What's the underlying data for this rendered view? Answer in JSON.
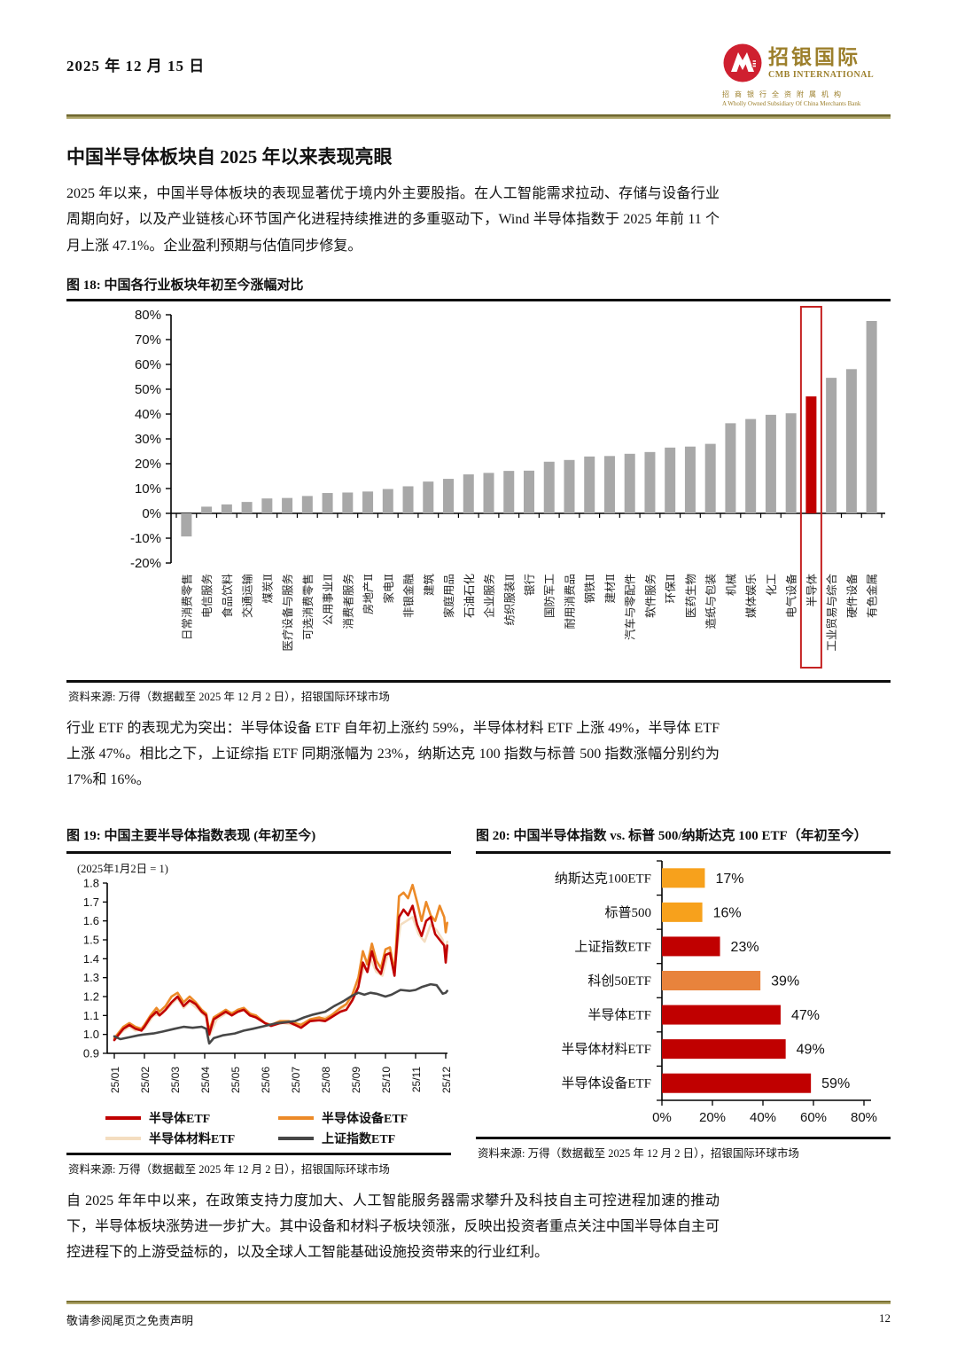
{
  "page": {
    "date": "2025 年 12 月 15 日",
    "footer_note": "敬请参阅尾页之免责声明",
    "page_number": "12"
  },
  "logo": {
    "name_cn": "招银国际",
    "name_en": "CMB INTERNATIONAL",
    "subsidiary_cn": "招商银行全资附属机构",
    "subsidiary_en": "A Wholly Owned Subsidiary Of China Merchants Bank",
    "mark_color": "#cf2030",
    "gold": "#9c7f2b"
  },
  "article": {
    "title": "中国半导体板块自 2025 年以来表现亮眼",
    "para1": "2025 年以来，中国半导体板块的表现显著优于境内外主要股指。在人工智能需求拉动、存储与设备行业周期向好，以及产业链核心环节国产化进程持续推进的多重驱动下，Wind 半导体指数于 2025 年前 11 个月上涨 47.1%。企业盈利预期与估值同步修复。",
    "para2": "行业 ETF 的表现尤为突出：半导体设备 ETF 自年初上涨约 59%，半导体材料 ETF 上涨 49%，半导体 ETF 上涨 47%。相比之下，上证综指 ETF 同期涨幅为 23%，纳斯达克 100 指数与标普 500 指数涨幅分别约为 17%和 16%。",
    "para3": "自 2025 年年中以来，在政策支持力度加大、人工智能服务器需求攀升及科技自主可控进程加速的推动下，半导体板块涨势进一步扩大。其中设备和材料子板块领涨，反映出投资者重点关注中国半导体自主可控进程下的上游受益标的，以及全球人工智能基础设施投资带来的行业红利。"
  },
  "chart_data": [
    {
      "id": "fig18",
      "type": "bar",
      "title": "图 18: 中国各行业板块年初至今涨幅对比",
      "source": "资料来源: 万得（数据截至 2025 年 12 月 2 日），招银国际环球市场",
      "categories": [
        "日常消费零售",
        "电信服务",
        "食品饮料",
        "交通运输",
        "煤炭Ⅱ",
        "医疗设备与服务",
        "可选消费零售",
        "公用事业Ⅱ",
        "消费者服务",
        "房地产Ⅱ",
        "家电Ⅱ",
        "非银金融",
        "建筑",
        "家庭用品",
        "石油石化",
        "企业服务",
        "纺织服装Ⅱ",
        "银行",
        "国防军工",
        "耐用消费品",
        "钢铁Ⅱ",
        "建材Ⅱ",
        "汽车与零配件",
        "软件服务",
        "环保Ⅱ",
        "医药生物",
        "造纸与包装",
        "机械",
        "媒体娱乐",
        "化工",
        "电气设备",
        "半导体",
        "工业贸易与综合",
        "硬件设备",
        "有色金属"
      ],
      "values": [
        -9.3,
        2.7,
        3.6,
        4.6,
        6.0,
        6.2,
        7.0,
        8.2,
        8.4,
        8.8,
        9.8,
        10.9,
        12.8,
        13.9,
        15.7,
        16.3,
        17.1,
        17.2,
        20.8,
        21.5,
        22.9,
        23.1,
        24.0,
        24.7,
        26.5,
        26.9,
        28.0,
        36.3,
        38.0,
        39.7,
        40.3,
        47.1,
        54.6,
        58.1,
        77.5
      ],
      "highlight_index": 31,
      "highlight_label": "半导体",
      "bar_color": "#a8a8a8",
      "highlight_color": "#c00000",
      "box_color": "#c52222",
      "ylim": [
        -20,
        80
      ],
      "yticks": [
        "80%",
        "70%",
        "60%",
        "50%",
        "40%",
        "30%",
        "20%",
        "10%",
        "0%",
        "-10%",
        "-20%"
      ],
      "grid": false,
      "legend": "none"
    },
    {
      "id": "fig19",
      "type": "line",
      "title": "图 19: 中国主要半导体指数表现 (年初至今)",
      "subtitle": "(2025年1月2日 = 1)",
      "source": "资料来源: 万得（数据截至 2025 年 12 月 2 日），招银国际环球市场",
      "x_labels": [
        "25/01",
        "25/02",
        "25/03",
        "25/04",
        "25/05",
        "25/06",
        "25/07",
        "25/08",
        "25/09",
        "25/10",
        "25/11",
        "25/12"
      ],
      "ylim": [
        0.9,
        1.8
      ],
      "yticks": [
        "1.8",
        "1.7",
        "1.6",
        "1.5",
        "1.4",
        "1.3",
        "1.2",
        "1.1",
        "1.0",
        "0.9"
      ],
      "grid": false,
      "legend_position": "bottom",
      "series": [
        {
          "name": "半导体材料ETF",
          "color": "#f4ddc0",
          "points": [
            [
              0,
              0.975
            ],
            [
              0.3,
              1.02
            ],
            [
              0.5,
              1.04
            ],
            [
              0.7,
              1.02
            ],
            [
              1,
              1.03
            ],
            [
              1.3,
              1.1
            ],
            [
              1.6,
              1.11
            ],
            [
              1.9,
              1.16
            ],
            [
              2.1,
              1.19
            ],
            [
              2.3,
              1.14
            ],
            [
              2.5,
              1.17
            ],
            [
              2.8,
              1.13
            ],
            [
              3.05,
              1.09
            ],
            [
              3.15,
              0.99
            ],
            [
              3.4,
              1.08
            ],
            [
              3.7,
              1.11
            ],
            [
              4,
              1.12
            ],
            [
              4.3,
              1.14
            ],
            [
              4.6,
              1.1
            ],
            [
              5,
              1.06
            ],
            [
              5.3,
              1.05
            ],
            [
              5.6,
              1.06
            ],
            [
              6,
              1.05
            ],
            [
              6.3,
              1.06
            ],
            [
              6.6,
              1.08
            ],
            [
              7,
              1.09
            ],
            [
              7.3,
              1.11
            ],
            [
              7.6,
              1.14
            ],
            [
              7.9,
              1.19
            ],
            [
              8.1,
              1.26
            ],
            [
              8.3,
              1.36
            ],
            [
              8.5,
              1.4
            ],
            [
              8.7,
              1.33
            ],
            [
              8.9,
              1.31
            ],
            [
              9.1,
              1.44
            ],
            [
              9.3,
              1.35
            ],
            [
              9.5,
              1.58
            ],
            [
              9.7,
              1.6
            ],
            [
              9.9,
              1.62
            ],
            [
              10.1,
              1.53
            ],
            [
              10.3,
              1.49
            ],
            [
              10.5,
              1.58
            ],
            [
              10.7,
              1.55
            ],
            [
              10.9,
              1.5
            ],
            [
              11.0,
              1.43
            ],
            [
              11.05,
              1.49
            ]
          ]
        },
        {
          "name": "半导体设备ETF",
          "color": "#ec8a28",
          "points": [
            [
              0,
              0.98
            ],
            [
              0.15,
              1.01
            ],
            [
              0.3,
              1.04
            ],
            [
              0.5,
              1.06
            ],
            [
              0.7,
              1.04
            ],
            [
              0.9,
              1.03
            ],
            [
              1,
              1.05
            ],
            [
              1.2,
              1.1
            ],
            [
              1.4,
              1.14
            ],
            [
              1.5,
              1.12
            ],
            [
              1.7,
              1.15
            ],
            [
              1.9,
              1.2
            ],
            [
              2.1,
              1.22
            ],
            [
              2.3,
              1.17
            ],
            [
              2.5,
              1.2
            ],
            [
              2.7,
              1.17
            ],
            [
              2.9,
              1.13
            ],
            [
              3.05,
              1.11
            ],
            [
              3.15,
              1.02
            ],
            [
              3.3,
              1.09
            ],
            [
              3.5,
              1.11
            ],
            [
              3.7,
              1.13
            ],
            [
              3.9,
              1.11
            ],
            [
              4.1,
              1.13
            ],
            [
              4.3,
              1.14
            ],
            [
              4.5,
              1.11
            ],
            [
              4.7,
              1.1
            ],
            [
              5,
              1.06
            ],
            [
              5.2,
              1.05
            ],
            [
              5.5,
              1.07
            ],
            [
              5.8,
              1.07
            ],
            [
              6,
              1.06
            ],
            [
              6.2,
              1.05
            ],
            [
              6.5,
              1.08
            ],
            [
              6.8,
              1.09
            ],
            [
              7,
              1.08
            ],
            [
              7.2,
              1.1
            ],
            [
              7.5,
              1.14
            ],
            [
              7.7,
              1.16
            ],
            [
              7.9,
              1.21
            ],
            [
              8.1,
              1.3
            ],
            [
              8.25,
              1.44
            ],
            [
              8.4,
              1.37
            ],
            [
              8.55,
              1.48
            ],
            [
              8.7,
              1.39
            ],
            [
              8.85,
              1.35
            ],
            [
              9,
              1.45
            ],
            [
              9.15,
              1.46
            ],
            [
              9.3,
              1.33
            ],
            [
              9.45,
              1.73
            ],
            [
              9.6,
              1.75
            ],
            [
              9.75,
              1.72
            ],
            [
              9.9,
              1.79
            ],
            [
              10.05,
              1.7
            ],
            [
              10.2,
              1.6
            ],
            [
              10.35,
              1.7
            ],
            [
              10.5,
              1.63
            ],
            [
              10.65,
              1.6
            ],
            [
              10.8,
              1.68
            ],
            [
              10.95,
              1.62
            ],
            [
              11.0,
              1.54
            ],
            [
              11.05,
              1.59
            ]
          ]
        },
        {
          "name": "半导体ETF",
          "color": "#c00000",
          "points": [
            [
              0,
              0.97
            ],
            [
              0.15,
              1.0
            ],
            [
              0.3,
              1.03
            ],
            [
              0.5,
              1.05
            ],
            [
              0.7,
              1.03
            ],
            [
              0.9,
              1.02
            ],
            [
              1,
              1.04
            ],
            [
              1.2,
              1.09
            ],
            [
              1.4,
              1.12
            ],
            [
              1.5,
              1.1
            ],
            [
              1.7,
              1.13
            ],
            [
              1.9,
              1.17
            ],
            [
              2.1,
              1.2
            ],
            [
              2.3,
              1.15
            ],
            [
              2.5,
              1.18
            ],
            [
              2.7,
              1.16
            ],
            [
              2.9,
              1.12
            ],
            [
              3.05,
              1.1
            ],
            [
              3.15,
              1.0
            ],
            [
              3.3,
              1.08
            ],
            [
              3.5,
              1.1
            ],
            [
              3.7,
              1.12
            ],
            [
              3.9,
              1.1
            ],
            [
              4.1,
              1.12
            ],
            [
              4.3,
              1.13
            ],
            [
              4.5,
              1.1
            ],
            [
              4.7,
              1.09
            ],
            [
              5,
              1.06
            ],
            [
              5.2,
              1.045
            ],
            [
              5.5,
              1.06
            ],
            [
              5.8,
              1.065
            ],
            [
              6,
              1.05
            ],
            [
              6.2,
              1.035
            ],
            [
              6.5,
              1.07
            ],
            [
              6.8,
              1.075
            ],
            [
              7,
              1.07
            ],
            [
              7.2,
              1.09
            ],
            [
              7.5,
              1.12
            ],
            [
              7.7,
              1.13
            ],
            [
              7.9,
              1.18
            ],
            [
              8.1,
              1.25
            ],
            [
              8.25,
              1.38
            ],
            [
              8.4,
              1.33
            ],
            [
              8.55,
              1.44
            ],
            [
              8.7,
              1.35
            ],
            [
              8.85,
              1.32
            ],
            [
              9,
              1.42
            ],
            [
              9.15,
              1.43
            ],
            [
              9.3,
              1.31
            ],
            [
              9.45,
              1.62
            ],
            [
              9.6,
              1.66
            ],
            [
              9.75,
              1.63
            ],
            [
              9.9,
              1.68
            ],
            [
              10.05,
              1.58
            ],
            [
              10.2,
              1.52
            ],
            [
              10.35,
              1.6
            ],
            [
              10.5,
              1.62
            ],
            [
              10.65,
              1.53
            ],
            [
              10.8,
              1.5
            ],
            [
              10.95,
              1.47
            ],
            [
              11.0,
              1.38
            ],
            [
              11.05,
              1.47
            ]
          ]
        },
        {
          "name": "上证指数ETF",
          "color": "#474747",
          "points": [
            [
              0,
              0.99
            ],
            [
              0.2,
              0.975
            ],
            [
              0.5,
              0.985
            ],
            [
              0.8,
              0.995
            ],
            [
              1,
              1.0
            ],
            [
              1.3,
              1.005
            ],
            [
              1.6,
              1.015
            ],
            [
              2,
              1.03
            ],
            [
              2.3,
              1.04
            ],
            [
              2.6,
              1.035
            ],
            [
              2.9,
              1.04
            ],
            [
              3.05,
              1.03
            ],
            [
              3.15,
              0.952
            ],
            [
              3.3,
              0.98
            ],
            [
              3.6,
              0.995
            ],
            [
              4,
              1.005
            ],
            [
              4.3,
              1.02
            ],
            [
              4.6,
              1.03
            ],
            [
              5,
              1.045
            ],
            [
              5.4,
              1.06
            ],
            [
              5.7,
              1.065
            ],
            [
              6,
              1.07
            ],
            [
              6.3,
              1.09
            ],
            [
              6.6,
              1.105
            ],
            [
              7,
              1.12
            ],
            [
              7.3,
              1.15
            ],
            [
              7.6,
              1.175
            ],
            [
              7.9,
              1.205
            ],
            [
              8.1,
              1.22
            ],
            [
              8.3,
              1.21
            ],
            [
              8.5,
              1.22
            ],
            [
              8.7,
              1.215
            ],
            [
              9,
              1.2
            ],
            [
              9.2,
              1.21
            ],
            [
              9.5,
              1.235
            ],
            [
              9.8,
              1.23
            ],
            [
              10,
              1.235
            ],
            [
              10.2,
              1.25
            ],
            [
              10.5,
              1.265
            ],
            [
              10.7,
              1.26
            ],
            [
              10.9,
              1.215
            ],
            [
              11.0,
              1.22
            ],
            [
              11.05,
              1.23
            ]
          ]
        }
      ],
      "legend": [
        {
          "label": "半导体ETF",
          "color": "#c00000"
        },
        {
          "label": "半导体设备ETF",
          "color": "#ec8a28"
        },
        {
          "label": "半导体材料ETF",
          "color": "#f4ddc0"
        },
        {
          "label": "上证指数ETF",
          "color": "#474747"
        }
      ]
    },
    {
      "id": "fig20",
      "type": "hbar",
      "title": "图 20: 中国半导体指数 vs. 标普 500/纳斯达克 100 ETF（年初至今）",
      "source": "资料来源: 万得（数据截至 2025 年 12 月 2 日），招银国际环球市场",
      "categories": [
        "纳斯达克100ETF",
        "标普500",
        "上证指数ETF",
        "科创50ETF",
        "半导体ETF",
        "半导体材料ETF",
        "半导体设备ETF"
      ],
      "values": [
        17,
        16,
        23,
        39,
        47,
        49,
        59
      ],
      "value_labels": [
        "17%",
        "16%",
        "23%",
        "39%",
        "47%",
        "49%",
        "59%"
      ],
      "colors": [
        "#f7a11c",
        "#f7a11c",
        "#c00000",
        "#e8833c",
        "#c00000",
        "#c00000",
        "#c00000"
      ],
      "xlim": [
        0,
        80
      ],
      "xticks": [
        0,
        20,
        40,
        60,
        80
      ],
      "xtick_labels": [
        "0%",
        "20%",
        "40%",
        "60%",
        "80%"
      ],
      "grid": false
    }
  ]
}
